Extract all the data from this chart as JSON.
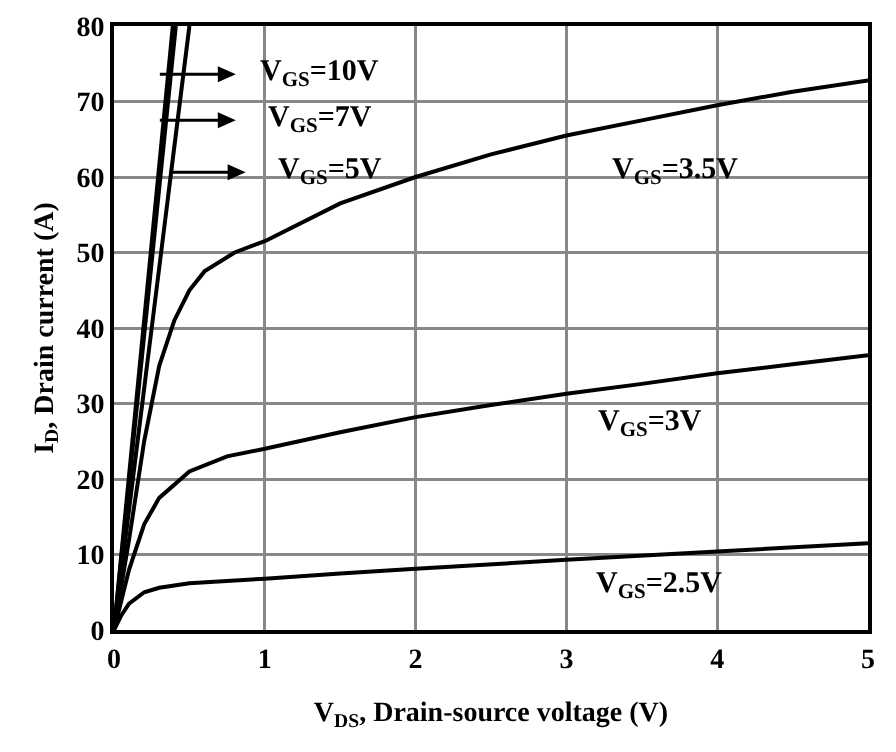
{
  "chart_data": {
    "type": "line",
    "xlabel": "V$_{DS}$, Drain-source voltage (V)",
    "ylabel": "I$_{D}$, Drain current (A)",
    "xlim": [
      0,
      5
    ],
    "ylim": [
      0,
      80
    ],
    "xticks": [
      0,
      1,
      2,
      3,
      4,
      5
    ],
    "yticks": [
      0,
      10,
      20,
      30,
      40,
      50,
      60,
      70,
      80
    ],
    "grid": true,
    "legend": "top left",
    "marker": "none",
    "line_style": "solid",
    "series": [
      {
        "name": "V$_{GS}$=10V",
        "color": "#000000",
        "x": [
          0,
          0.39
        ],
        "values": [
          0,
          80
        ]
      },
      {
        "name": "V$_{GS}$=7V",
        "color": "#000000",
        "x": [
          0,
          0.41
        ],
        "values": [
          0,
          80
        ]
      },
      {
        "name": "V$_{GS}$=5V",
        "color": "#000000",
        "x": [
          0,
          0.5
        ],
        "values": [
          0,
          80
        ]
      },
      {
        "name": "V$_{GS}$=3.5V",
        "color": "#000000",
        "x": [
          0,
          0.1,
          0.2,
          0.3,
          0.4,
          0.5,
          0.6,
          0.8,
          1,
          1.5,
          2,
          2.5,
          3,
          3.5,
          4,
          4.5,
          5
        ],
        "values": [
          0,
          12,
          25,
          35,
          41,
          45,
          47.5,
          50,
          51.5,
          56.5,
          60,
          63,
          65.5,
          67.5,
          69.5,
          71.3,
          72.8
        ]
      },
      {
        "name": "V$_{GS}$=3V",
        "color": "#000000",
        "x": [
          0,
          0.1,
          0.2,
          0.3,
          0.5,
          0.75,
          1,
          1.5,
          2,
          2.5,
          3,
          3.5,
          4,
          4.5,
          5
        ],
        "values": [
          0,
          8,
          14,
          17.5,
          21,
          23,
          24,
          26.2,
          28.2,
          29.8,
          31.3,
          32.6,
          34,
          35.2,
          36.4
        ]
      },
      {
        "name": "V$_{GS}$=2.5V",
        "color": "#000000",
        "x": [
          0,
          0.05,
          0.1,
          0.2,
          0.3,
          0.5,
          1,
          1.5,
          2,
          3,
          4,
          5
        ],
        "values": [
          0,
          2,
          3.5,
          5,
          5.6,
          6.2,
          6.8,
          7.5,
          8.1,
          9.3,
          10.4,
          11.5
        ]
      }
    ]
  }
}
